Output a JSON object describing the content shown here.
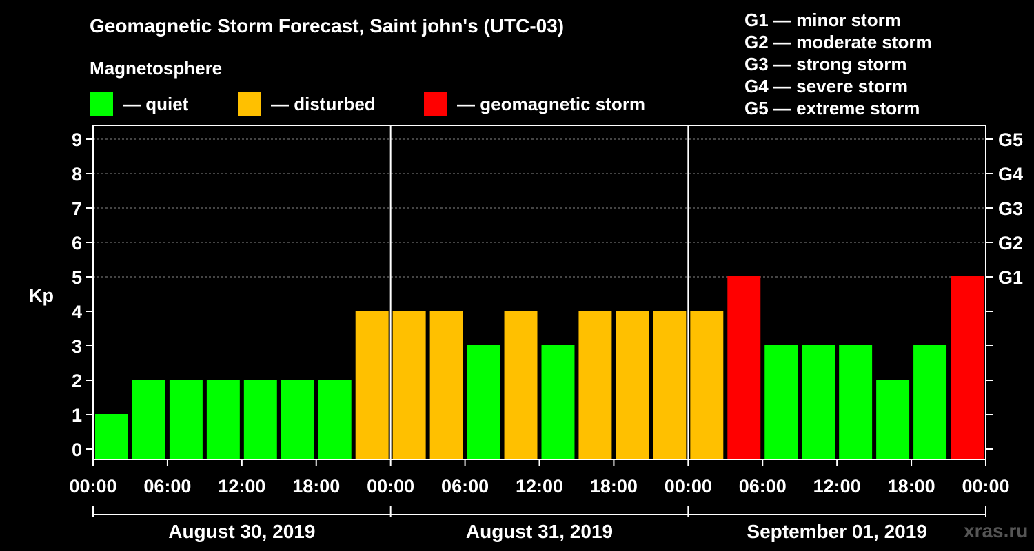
{
  "title": "Geomagnetic Storm Forecast, Saint john's (UTC-03)",
  "magnetosphere_label": "Magnetosphere",
  "legend": [
    {
      "label": "— quiet",
      "color": "#00ff00"
    },
    {
      "label": "— disturbed",
      "color": "#ffc000"
    },
    {
      "label": "— geomagnetic storm",
      "color": "#ff0000"
    }
  ],
  "g_legend": [
    "G1 — minor storm",
    "G2 — moderate storm",
    "G3 — strong storm",
    "G4 — severe storm",
    "G5 — extreme storm"
  ],
  "watermark": "xras.ru",
  "chart_data": {
    "type": "bar",
    "ylabel": "Kp",
    "ylim": [
      0,
      9
    ],
    "yticks": [
      "0",
      "1",
      "2",
      "3",
      "4",
      "5",
      "6",
      "7",
      "8",
      "9"
    ],
    "right_ticks": [
      {
        "kp": 5,
        "label": "G1"
      },
      {
        "kp": 6,
        "label": "G2"
      },
      {
        "kp": 7,
        "label": "G3"
      },
      {
        "kp": 8,
        "label": "G4"
      },
      {
        "kp": 9,
        "label": "G5"
      }
    ],
    "xtick_labels": [
      "00:00",
      "06:00",
      "12:00",
      "18:00",
      "00:00",
      "06:00",
      "12:00",
      "18:00",
      "00:00",
      "06:00",
      "12:00",
      "18:00",
      "00:00"
    ],
    "days": [
      "August 30, 2019",
      "August 31, 2019",
      "September 01, 2019"
    ],
    "categories": [
      "Aug 30 00:00",
      "Aug 30 03:00",
      "Aug 30 06:00",
      "Aug 30 09:00",
      "Aug 30 12:00",
      "Aug 30 15:00",
      "Aug 30 18:00",
      "Aug 30 21:00",
      "Aug 31 00:00",
      "Aug 31 03:00",
      "Aug 31 06:00",
      "Aug 31 09:00",
      "Aug 31 12:00",
      "Aug 31 15:00",
      "Aug 31 18:00",
      "Aug 31 21:00",
      "Sep 01 00:00",
      "Sep 01 03:00",
      "Sep 01 06:00",
      "Sep 01 09:00",
      "Sep 01 12:00",
      "Sep 01 15:00",
      "Sep 01 18:00",
      "Sep 01 21:00"
    ],
    "values": [
      1,
      2,
      2,
      2,
      2,
      2,
      2,
      4,
      4,
      4,
      3,
      4,
      3,
      4,
      4,
      4,
      4,
      5,
      3,
      3,
      3,
      2,
      3,
      5
    ],
    "colors": {
      "quiet": "#00ff00",
      "disturbed": "#ffc000",
      "storm": "#ff0000"
    },
    "grid": "dashed horizontal"
  }
}
